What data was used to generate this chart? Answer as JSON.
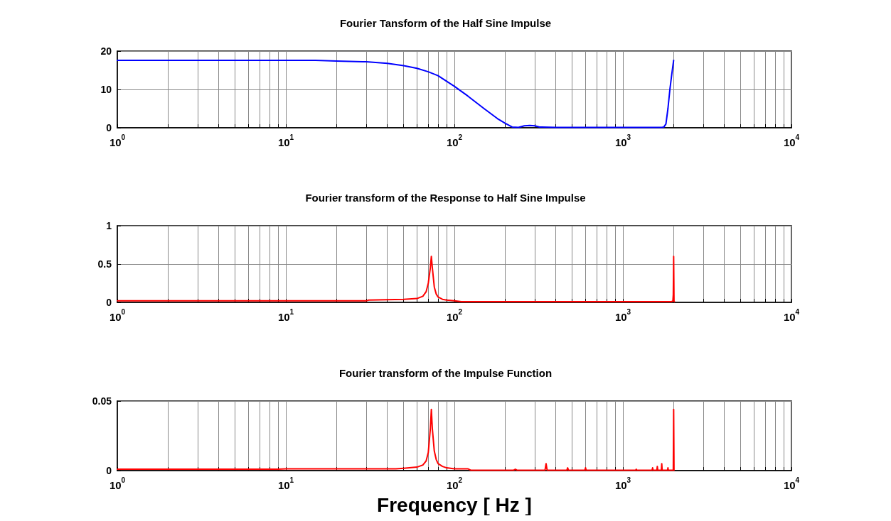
{
  "chart_data": [
    {
      "type": "line",
      "title": "Fourier Tansform of the Half Sine Impulse",
      "log": "x",
      "grid": true,
      "marker": "none",
      "line_style": "solid",
      "xlim": [
        1,
        10000
      ],
      "xticks": [
        {
          "value": 1,
          "label": "10$^{0}$"
        },
        {
          "value": 10,
          "label": "10$^{1}$"
        },
        {
          "value": 100,
          "label": "10$^{2}$"
        },
        {
          "value": 1000,
          "label": "10$^{3}$"
        },
        {
          "value": 10000,
          "label": "10$^{4}$"
        }
      ],
      "ylim": [
        0,
        20
      ],
      "yticks": [
        0,
        10,
        20
      ],
      "x": [
        1,
        2,
        5,
        10,
        15,
        20,
        30,
        40,
        50,
        60,
        70,
        80,
        100,
        120,
        150,
        180,
        200,
        220,
        240,
        260,
        280,
        300,
        320,
        400,
        600,
        1000,
        1500,
        1700,
        1750,
        1800,
        1850,
        1900,
        1950,
        2000
      ],
      "series": [
        {
          "color": "#0000ff",
          "values": [
            17.6,
            17.6,
            17.6,
            17.6,
            17.6,
            17.4,
            17.2,
            16.8,
            16.2,
            15.5,
            14.6,
            13.6,
            10.8,
            8.3,
            5,
            2.4,
            1.2,
            0.2,
            0.1,
            0.5,
            0.6,
            0.5,
            0.2,
            0.1,
            0.1,
            0.1,
            0.1,
            0.1,
            0.2,
            1,
            5,
            10,
            14,
            17.6
          ]
        }
      ]
    },
    {
      "type": "line",
      "title": "Fourier transform of the Response to Half Sine Impulse",
      "log": "x",
      "grid": true,
      "marker": "none",
      "line_style": "solid",
      "xlim": [
        1,
        10000
      ],
      "xticks": [
        {
          "value": 1,
          "label": "10$^{0}$"
        },
        {
          "value": 10,
          "label": "10$^{1}$"
        },
        {
          "value": 100,
          "label": "10$^{2}$"
        },
        {
          "value": 1000,
          "label": "10$^{3}$"
        },
        {
          "value": 10000,
          "label": "10$^{4}$"
        }
      ],
      "ylim": [
        0,
        1
      ],
      "yticks": [
        0,
        0.5,
        1
      ],
      "x": [
        1,
        10,
        30,
        31,
        50,
        60,
        65,
        68,
        70,
        72,
        73,
        74,
        76,
        78,
        80,
        85,
        90,
        100,
        110,
        1000,
        1950,
        1980,
        1990,
        2000,
        2010,
        2020
      ],
      "series": [
        {
          "color": "#ff0000",
          "values": [
            0.02,
            0.02,
            0.02,
            0.03,
            0.04,
            0.05,
            0.08,
            0.14,
            0.25,
            0.45,
            0.6,
            0.45,
            0.2,
            0.11,
            0.07,
            0.04,
            0.03,
            0.02,
            0.01,
            0.01,
            0.01,
            0.02,
            0.1,
            0.6,
            0.02,
            0.01
          ]
        }
      ]
    },
    {
      "type": "line",
      "title": "Fourier transform of the Impulse Function",
      "xlabel": "Frequency [ Hz ]",
      "log": "x",
      "grid": true,
      "marker": "none",
      "line_style": "solid",
      "xlim": [
        1,
        10000
      ],
      "xticks": [
        {
          "value": 1,
          "label": "10$^{0}$"
        },
        {
          "value": 10,
          "label": "10$^{1}$"
        },
        {
          "value": 100,
          "label": "10$^{2}$"
        },
        {
          "value": 1000,
          "label": "10$^{3}$"
        },
        {
          "value": 10000,
          "label": "10$^{4}$"
        }
      ],
      "ylim": [
        0,
        0.05
      ],
      "yticks": [
        0,
        0.05
      ],
      "x": [
        1,
        9,
        10,
        45,
        50,
        60,
        65,
        68,
        70,
        72,
        73,
        74,
        76,
        78,
        80,
        85,
        90,
        100,
        120,
        125,
        225,
        230,
        235,
        345,
        350,
        355,
        465,
        470,
        475,
        595,
        600,
        605,
        1190,
        1200,
        1210,
        1490,
        1500,
        1510,
        1590,
        1600,
        1610,
        1690,
        1700,
        1710,
        1840,
        1850,
        1860,
        1990,
        2000,
        2010
      ],
      "series": [
        {
          "color": "#ff0000",
          "values": [
            0.001,
            0.001,
            0.0013,
            0.0013,
            0.0017,
            0.0025,
            0.004,
            0.007,
            0.013,
            0.03,
            0.044,
            0.03,
            0.014,
            0.008,
            0.005,
            0.003,
            0.002,
            0.0013,
            0.0013,
            0.0003,
            0.0003,
            0.001,
            0.0003,
            0.0003,
            0.005,
            0.0003,
            0.0003,
            0.002,
            0.0003,
            0.0003,
            0.002,
            0.0003,
            0.0003,
            0.001,
            0.0003,
            0.0003,
            0.002,
            0.0003,
            0.0003,
            0.003,
            0.0003,
            0.0003,
            0.005,
            0.0003,
            0.0003,
            0.002,
            0.0003,
            0.0003,
            0.044,
            0.0003
          ]
        }
      ]
    }
  ]
}
